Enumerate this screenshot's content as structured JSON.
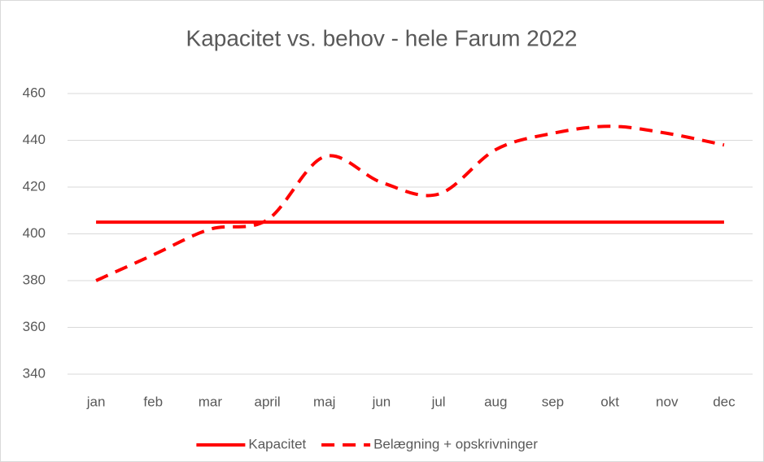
{
  "chart_data": {
    "type": "line",
    "title": "Kapacitet vs. behov - hele Farum 2022",
    "categories": [
      "jan",
      "feb",
      "mar",
      "april",
      "maj",
      "jun",
      "jul",
      "aug",
      "sep",
      "okt",
      "nov",
      "dec"
    ],
    "series": [
      {
        "name": "Kapacitet",
        "color": "#ff0000",
        "dashed": false,
        "values": [
          405,
          405,
          405,
          405,
          405,
          405,
          405,
          405,
          405,
          405,
          405,
          405
        ]
      },
      {
        "name": "Belægning + opskrivninger",
        "color": "#ff0000",
        "dashed": true,
        "values": [
          380,
          391,
          402,
          406,
          433,
          422,
          417,
          436,
          443,
          446,
          443,
          438
        ]
      }
    ],
    "ylim": [
      340,
      460
    ],
    "yticks": [
      340,
      360,
      380,
      400,
      420,
      440,
      460
    ],
    "grid": true,
    "smooth": true,
    "legend": "bottom"
  }
}
